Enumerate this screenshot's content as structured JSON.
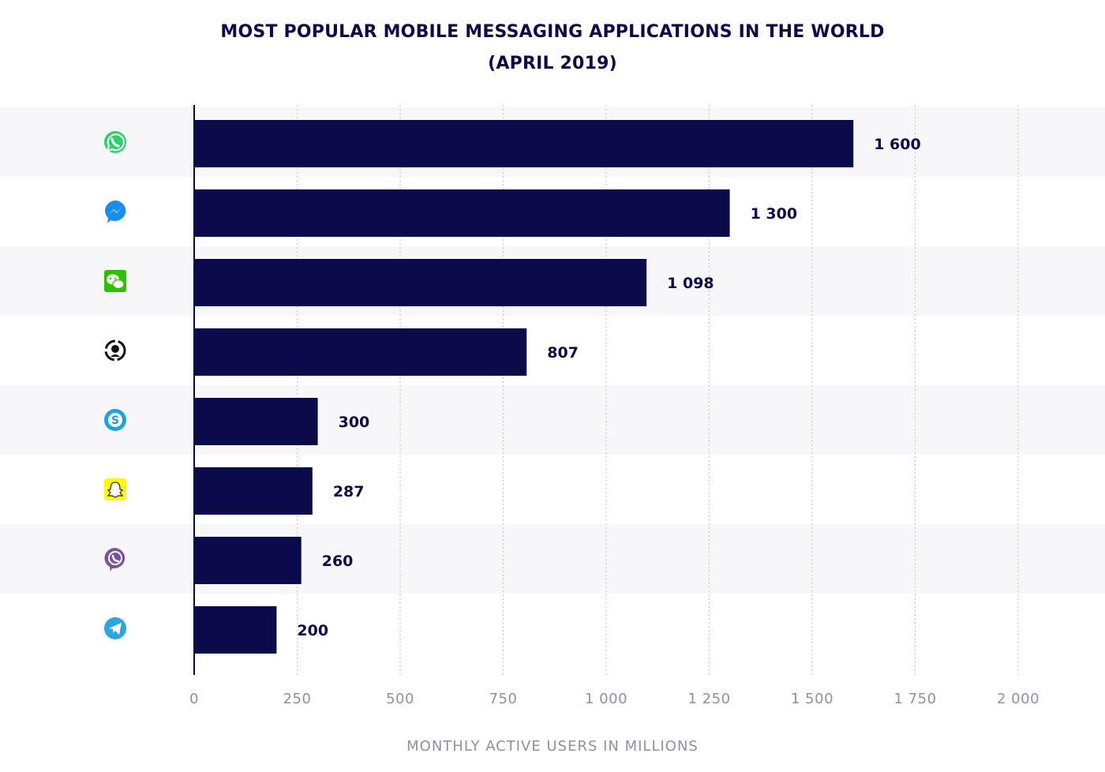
{
  "chart_data": {
    "type": "bar",
    "orientation": "horizontal",
    "title": "MOST POPULAR MOBILE MESSAGING APPLICATIONS IN THE WORLD",
    "subtitle": "(APRIL 2019)",
    "xlabel": "MONTHLY ACTIVE USERS IN MILLIONS",
    "ylabel": "",
    "xlim": [
      0,
      2000
    ],
    "ticks": [
      0,
      250,
      500,
      750,
      1000,
      1250,
      1500,
      1750,
      2000
    ],
    "tick_labels": [
      "0",
      "250",
      "500",
      "750",
      "1 000",
      "1 250",
      "1 500",
      "1 750",
      "2 000"
    ],
    "grid": true,
    "categories": [
      "whatsapp-icon",
      "messenger-icon",
      "wechat-icon",
      "qq-icon",
      "skype-icon",
      "snapchat-icon",
      "viber-icon",
      "telegram-icon"
    ],
    "values": [
      1600,
      1300,
      1098,
      807,
      300,
      287,
      260,
      200
    ],
    "value_labels": [
      "1 600",
      "1 300",
      "1 098",
      "807",
      "300",
      "287",
      "260",
      "200"
    ],
    "colors": {
      "bar": "#0b0a4a",
      "band": "#f7f7fa",
      "axis": "#0b0a4a",
      "grid": "#c8c8d0",
      "tick_text": "#8f8fa6",
      "label_text": "#0b0a4a"
    }
  }
}
